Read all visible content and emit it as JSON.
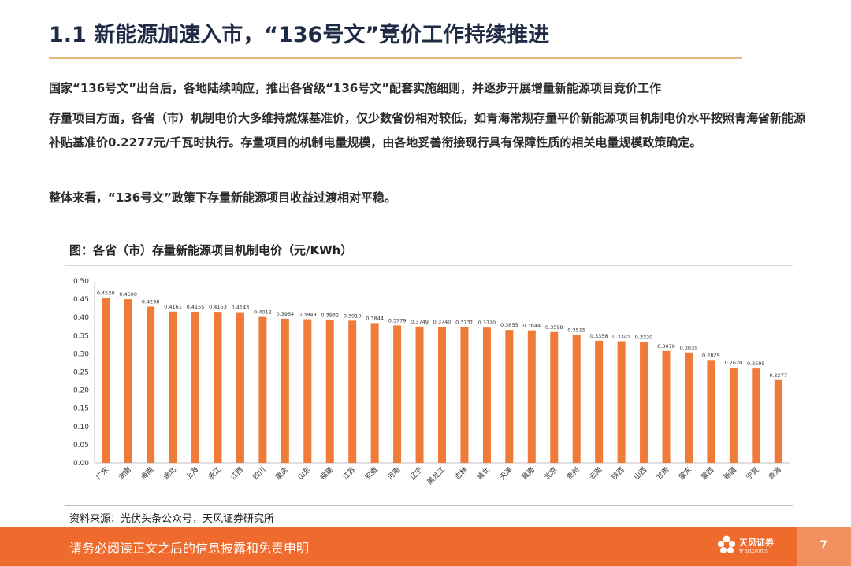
{
  "slide": {
    "title": "1.1 新能源加速入市，“136号文”竞价工作持续推进",
    "paragraphs": [
      "国家“136号文”出台后，各地陆续响应，推出各省级“136号文”配套实施细则，并逐步开展增量新能源项目竞价工作",
      "存量项目方面，各省（市）机制电价大多维持燃煤基准价，仅少数省份相对较低，如青海常规存量平价新能源项目机制电价水平按照青海省新能源补贴基准价0.2277元/千瓦时执行。存量项目的机制电量规模，由各地妥善衔接现行具有保障性质的相关电量规模政策确定。",
      "整体来看，“136号文”政策下存量新能源项目收益过渡相对平稳。"
    ],
    "source": "资料来源：光伏头条公众号，天风证券研究所",
    "footer_text": "请务必阅读正文之后的信息披露和免责申明",
    "logo_name": "天风证券",
    "logo_sub": "TF SECURITIES",
    "page_number": "7"
  },
  "chart_data": {
    "type": "bar",
    "title": "图：各省（市）存量新能源项目机制电价（元/KWh）",
    "categories": [
      "广东",
      "湖南",
      "海南",
      "湖北",
      "上海",
      "浙江",
      "江西",
      "四川",
      "重庆",
      "山东",
      "福建",
      "江苏",
      "安徽",
      "河南",
      "辽宁",
      "黑龙江",
      "吉林",
      "冀北",
      "天津",
      "冀南",
      "北京",
      "贵州",
      "云南",
      "陕西",
      "山西",
      "甘肃",
      "蒙东",
      "蒙西",
      "新疆",
      "宁夏",
      "青海"
    ],
    "values": [
      0.453,
      0.45,
      0.4298,
      0.4161,
      0.4155,
      0.4153,
      0.4143,
      0.4012,
      0.3964,
      0.3949,
      0.3932,
      0.391,
      0.3844,
      0.3779,
      0.3749,
      0.374,
      0.3731,
      0.372,
      0.3655,
      0.3644,
      0.3598,
      0.3515,
      0.3358,
      0.3345,
      0.332,
      0.3078,
      0.3035,
      0.2829,
      0.262,
      0.2595,
      0.2277
    ],
    "value_labels": [
      "0.4530",
      "0.4500",
      "0.4298",
      "0.4161",
      "0.4155",
      "0.4153",
      "0.4143",
      "0.4012",
      "0.3964",
      "0.3949",
      "0.3932",
      "0.3910",
      "0.3844",
      "0.3779",
      "0.3749",
      "0.3740",
      "0.3731",
      "0.3720",
      "0.3655",
      "0.3644",
      "0.3598",
      "0.3515",
      "0.3358",
      "0.3345",
      "0.3320",
      "0.3078",
      "0.3035",
      "0.2829",
      "0.2620",
      "0.2595",
      "0.2277"
    ],
    "yticks": [
      "0.00",
      "0.05",
      "0.10",
      "0.15",
      "0.20",
      "0.25",
      "0.30",
      "0.35",
      "0.40",
      "0.45",
      "0.50"
    ],
    "ylim": [
      0,
      0.5
    ],
    "grid": false,
    "legend": "none",
    "bar_color": "#f07a38"
  }
}
